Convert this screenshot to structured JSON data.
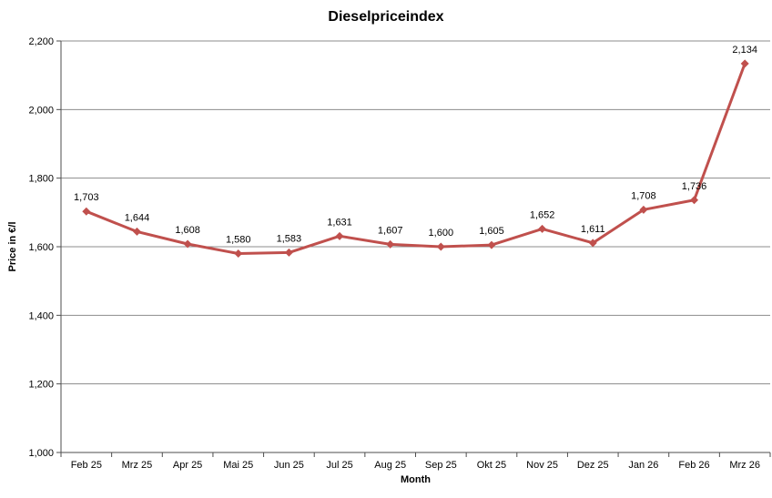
{
  "chart_data": {
    "type": "line",
    "title": "Dieselpriceindex",
    "xlabel": "Month",
    "ylabel": "Price in €/l",
    "categories": [
      "Feb 25",
      "Mrz 25",
      "Apr 25",
      "Mai 25",
      "Jun 25",
      "Jul 25",
      "Aug 25",
      "Sep 25",
      "Okt 25",
      "Nov 25",
      "Dez 25",
      "Jan 26",
      "Feb 26",
      "Mrz 26"
    ],
    "series": [
      {
        "name": "Dieselpriceindex",
        "values": [
          1703,
          1644,
          1608,
          1580,
          1583,
          1631,
          1607,
          1600,
          1605,
          1652,
          1611,
          1708,
          1736,
          2134
        ],
        "value_labels": [
          "1,703",
          "1,644",
          "1,608",
          "1,580",
          "1,583",
          "1,631",
          "1,607",
          "1,600",
          "1,605",
          "1,652",
          "1,611",
          "1,708",
          "1,736",
          "2,134"
        ],
        "color": "#C0504D",
        "marker": "diamond"
      }
    ],
    "ylim": [
      1000,
      2200
    ],
    "ytick_step": 200,
    "ytick_labels": [
      "1,000",
      "1,200",
      "1,400",
      "1,600",
      "1,800",
      "2,000",
      "2,200"
    ],
    "grid": "horizontal-only",
    "legend_position": "none",
    "gridline_color": "#8C8C8C",
    "axis_color": "#4D4D4D"
  }
}
